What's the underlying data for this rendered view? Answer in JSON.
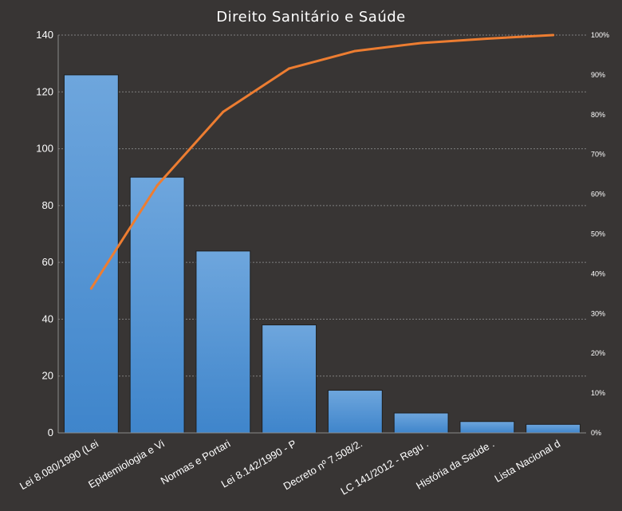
{
  "chart_data": {
    "type": "bar",
    "title": "Direito Sanitário e Saúde",
    "categories": [
      "Lei 8.080/1990 (Lei",
      "Epidemiologia e Vi",
      "Normas e Portari",
      "Lei 8.142/1990 - P",
      "Decreto nº 7.508/2.",
      "LC 141/2012 - Regu .",
      "História da Saúde .",
      "Lista Nacional d"
    ],
    "series": [
      {
        "type": "bar",
        "values": [
          126,
          90,
          64,
          38,
          15,
          7,
          4,
          3
        ]
      },
      {
        "type": "line",
        "axis": "secondary",
        "values": [
          36.3,
          62.2,
          80.7,
          91.6,
          96.0,
          98.0,
          99.1,
          100
        ]
      }
    ],
    "ylim": [
      0,
      140
    ],
    "yticks": [
      "0",
      "20",
      "40",
      "60",
      "80",
      "100",
      "120",
      "140"
    ],
    "y2lim": [
      0,
      100
    ],
    "y2ticks": [
      "0%",
      "10%",
      "20%",
      "30%",
      "40%",
      "50%",
      "60%",
      "70%",
      "80%",
      "90%",
      "100%"
    ],
    "grid": true,
    "colors": {
      "bar": "#5b9bd5",
      "line": "#ed7d31",
      "background": "#383534",
      "grid": "#7a7a7a"
    }
  }
}
